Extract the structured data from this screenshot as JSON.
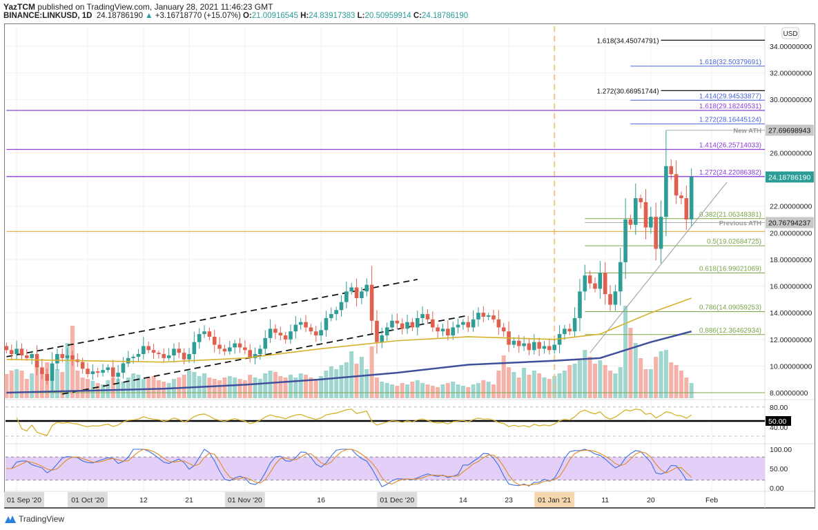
{
  "header": {
    "author": "YazTCM",
    "published": "published on TradingView.com, January 28, 2021 11:46:23 GMT",
    "symbol": "BINANCE:LINKUSD, 1D",
    "last": "24.18786190",
    "change": "+3.16718770 (+15.07%)",
    "o_label": "O:",
    "o": "21.00916545",
    "h_label": "H:",
    "h": "24.83917383",
    "l_label": "L:",
    "l": "20.50959914",
    "c_label": "C:",
    "c": "24.18786190"
  },
  "footer": {
    "brand": "TradingView"
  },
  "colors": {
    "up": "#2e9d95",
    "down": "#e0604f",
    "ma_fast": "#d4b12a",
    "ma_slow": "#3f4f9a",
    "fib_green": "#7aa64a",
    "fib_blue": "#4a66d8",
    "fib_purple": "#8a3fd8",
    "ath_line": "#d9aa3a"
  },
  "chart_data": {
    "type": "candlestick",
    "currency": "USD",
    "start_date": "2020-09-15",
    "price_range": [
      8,
      35
    ],
    "price_ticks": [
      "34.00000000",
      "32.00000000",
      "30.00000000",
      "26.00000000",
      "22.00000000",
      "20.00000000",
      "18.00000000",
      "16.00000000",
      "14.00000000",
      "12.00000000",
      "10.00000000",
      "8.00000000"
    ],
    "price_tick_values": [
      34,
      32,
      30,
      26,
      22,
      20,
      18,
      16,
      14,
      12,
      10,
      8
    ],
    "date_ticks": [
      {
        "label": "01 Sep '20",
        "day": -14,
        "boxed": "gray"
      },
      {
        "label": "01 Oct '20",
        "day": 0,
        "boxed": "gray"
      },
      {
        "label": "12",
        "day": 11
      },
      {
        "label": "21",
        "day": 20
      },
      {
        "label": "01 Nov '20",
        "day": 31,
        "boxed": "gray"
      },
      {
        "label": "16",
        "day": 46
      },
      {
        "label": "01 Dec '20",
        "day": 61,
        "boxed": "gray"
      },
      {
        "label": "14",
        "day": 74
      },
      {
        "label": "23",
        "day": 83
      },
      {
        "label": "01 Jan '21",
        "day": 92,
        "boxed": "orange"
      },
      {
        "label": "11",
        "day": 102
      },
      {
        "label": "20",
        "day": 111
      },
      {
        "label": "Feb",
        "day": 123
      }
    ],
    "closes": [
      11.2,
      10.9,
      11.3,
      10.8,
      10.6,
      10.9,
      9.9,
      9.4,
      8.9,
      10.2,
      10.9,
      10.6,
      10.8,
      10.5,
      10.3,
      9.8,
      9.4,
      9.6,
      9.5,
      9.7,
      9.9,
      9.2,
      9.5,
      10.2,
      10.6,
      10.7,
      10.9,
      11.5,
      11.2,
      11.0,
      10.9,
      10.6,
      10.8,
      11.3,
      11.0,
      10.5,
      10.9,
      11.8,
      12.4,
      12.6,
      12.2,
      11.6,
      11.3,
      11.1,
      11.4,
      11.7,
      11.4,
      11.2,
      10.6,
      10.9,
      11.3,
      12.1,
      12.8,
      12.5,
      12.3,
      12.0,
      12.6,
      13.1,
      13.3,
      12.9,
      12.6,
      12.3,
      12.7,
      13.6,
      13.9,
      14.2,
      14.8,
      15.6,
      15.9,
      15.1,
      15.6,
      16.1,
      13.4,
      11.8,
      12.3,
      12.9,
      13.4,
      13.2,
      12.8,
      13.3,
      12.9,
      13.6,
      13.9,
      13.5,
      12.9,
      12.6,
      12.8,
      12.3,
      12.9,
      13.1,
      13.3,
      12.9,
      13.5,
      14.0,
      13.7,
      13.8,
      13.5,
      12.9,
      12.6,
      11.6,
      11.9,
      11.5,
      11.7,
      11.2,
      11.8,
      11.3,
      11.5,
      11.2,
      11.6,
      12.4,
      12.8,
      12.6,
      13.6,
      15.6,
      16.8,
      16.2,
      15.8,
      17.0,
      15.4,
      14.6,
      15.6,
      17.8,
      21.0,
      20.6,
      22.6,
      22.3,
      20.4,
      21.2,
      18.8,
      21.2,
      25.0,
      24.4,
      22.8,
      22.6,
      21.0,
      24.1878619
    ],
    "last_candle": {
      "open": 21.00916545,
      "high": 24.83917383,
      "low": 20.50959914,
      "close": 24.1878619
    },
    "volume": [
      35,
      40,
      42,
      40,
      28,
      36,
      48,
      40,
      52,
      50,
      42,
      38,
      80,
      105,
      40,
      30,
      28,
      25,
      22,
      20,
      26,
      30,
      28,
      24,
      30,
      36,
      34,
      28,
      30,
      32,
      26,
      24,
      22,
      28,
      30,
      34,
      40,
      38,
      32,
      36,
      30,
      28,
      26,
      30,
      32,
      30,
      28,
      26,
      34,
      30,
      28,
      36,
      40,
      38,
      32,
      30,
      34,
      30,
      36,
      34,
      30,
      28,
      32,
      40,
      46,
      42,
      48,
      52,
      68,
      50,
      60,
      42,
      75,
      30,
      24,
      22,
      20,
      18,
      22,
      20,
      24,
      26,
      22,
      20,
      18,
      16,
      20,
      22,
      24,
      20,
      18,
      16,
      20,
      22,
      26,
      24,
      20,
      40,
      62,
      45,
      38,
      30,
      44,
      34,
      40,
      36,
      30,
      28,
      32,
      36,
      40,
      48,
      50,
      55,
      70,
      60,
      50,
      55,
      48,
      40,
      36,
      45,
      134,
      102,
      80,
      58,
      42,
      42,
      60,
      68,
      70,
      52,
      48,
      40,
      30,
      22
    ],
    "ma_fast": [
      [
        -16,
        10.5
      ],
      [
        15,
        10.3
      ],
      [
        31,
        10.6
      ],
      [
        46,
        11.3
      ],
      [
        61,
        11.9
      ],
      [
        75,
        12.2
      ],
      [
        92,
        12.0
      ],
      [
        101,
        12.4
      ],
      [
        106,
        13.2
      ],
      [
        111,
        14.0
      ],
      [
        119,
        15.1
      ]
    ],
    "ma_slow": [
      [
        -16,
        8.0
      ],
      [
        15,
        8.3
      ],
      [
        31,
        8.6
      ],
      [
        46,
        9.0
      ],
      [
        61,
        9.5
      ],
      [
        75,
        10.1
      ],
      [
        92,
        10.4
      ],
      [
        101,
        10.6
      ],
      [
        111,
        11.8
      ],
      [
        119,
        12.6
      ]
    ],
    "channel": [
      {
        "name": "channel-upper",
        "from": [
          -16,
          10.7
        ],
        "to": [
          65,
          16.5
        ]
      },
      {
        "name": "channel-lower",
        "from": [
          -5,
          7.9
        ],
        "to": [
          75,
          13.8
        ]
      }
    ],
    "trendline": {
      "from": [
        99,
        11.0
      ],
      "to": [
        126,
        23.8
      ]
    },
    "jan1_marker_day": 92,
    "levels": [
      {
        "label": "1.618(34.45074791)",
        "value": 34.45074791,
        "kind": "black",
        "from_day": 113
      },
      {
        "label": "1.618(32.50379691)",
        "value": 32.50379691,
        "kind": "blue",
        "from_day": 107
      },
      {
        "label": "1.272(30.66951744)",
        "value": 30.66951744,
        "kind": "black",
        "from_day": 113
      },
      {
        "label": "1.414(29.94533877)",
        "value": 29.94533877,
        "kind": "blue",
        "from_day": 107
      },
      {
        "label": "1.618(29.18249531)",
        "value": 29.18249531,
        "kind": "purple",
        "from_day": -16
      },
      {
        "label": "1.272(28.16445124)",
        "value": 28.16445124,
        "kind": "blue",
        "from_day": 107
      },
      {
        "label": "1.414(26.25714033)",
        "value": 26.25714033,
        "kind": "purple",
        "from_day": -16
      },
      {
        "label": "1.272(24.22086382)",
        "value": 24.22086382,
        "kind": "purple",
        "from_day": -16
      },
      {
        "label": "0.382(21.06348381)",
        "value": 21.06348381,
        "kind": "green",
        "from_day": 98
      },
      {
        "label": "0.5(19.02684725)",
        "value": 19.02684725,
        "kind": "green",
        "from_day": 98
      },
      {
        "label": "0.618(16.99021069)",
        "value": 16.99021069,
        "kind": "green",
        "from_day": 98
      },
      {
        "label": "0.786(14.09059253)",
        "value": 14.09059253,
        "kind": "green",
        "from_day": 98
      },
      {
        "label": "0.886(12.36462934)",
        "value": 12.36462934,
        "kind": "green",
        "from_day": 98
      },
      {
        "label": "",
        "value": 8.0,
        "kind": "green",
        "from_day": -16
      },
      {
        "label": "",
        "value": 20.1,
        "kind": "ath",
        "from_day": -16
      }
    ],
    "markers": [
      {
        "label": "New ATH",
        "value": 27.69698943,
        "price": "27.69698943",
        "from_day": 114,
        "box": "gray"
      },
      {
        "label": "Previous ATH",
        "value": 20.76794237,
        "price": "20.76794237",
        "from_day": 98,
        "box": "gray"
      },
      {
        "label": "",
        "value": 24.1878619,
        "price": "24.18786190",
        "from_day": 119,
        "box": "teal"
      }
    ],
    "rsi": {
      "ticks": [
        "80.00",
        "40.00"
      ],
      "level_label": "50.00",
      "period": 14
    },
    "stoch_rsi": {
      "ticks": [
        "100.00",
        "50.00",
        "0.00"
      ],
      "band": [
        20,
        80
      ]
    }
  }
}
